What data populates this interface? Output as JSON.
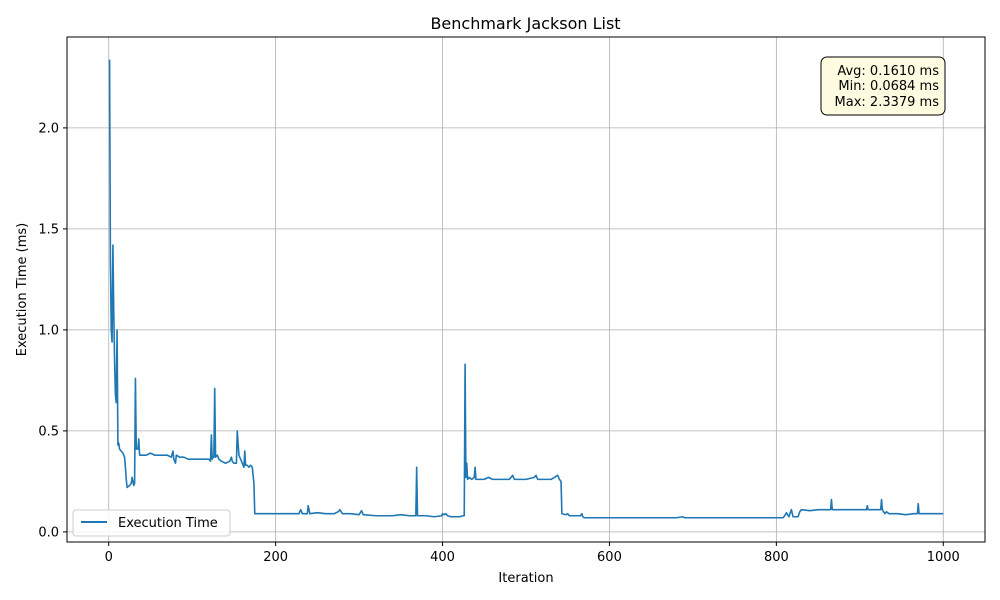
{
  "chart_data": {
    "type": "line",
    "title": "Benchmark Jackson List",
    "xlabel": "Iteration",
    "ylabel": "Execution Time (ms)",
    "xlim": [
      -50,
      1050
    ],
    "ylim": [
      -0.05,
      2.45
    ],
    "xticks": [
      0,
      200,
      400,
      600,
      800,
      1000
    ],
    "yticks": [
      0.0,
      0.5,
      1.0,
      1.5,
      2.0
    ],
    "xtick_labels": [
      "0",
      "200",
      "400",
      "600",
      "800",
      "1000"
    ],
    "ytick_labels": [
      "0.0",
      "0.5",
      "1.0",
      "1.5",
      "2.0"
    ],
    "grid": true,
    "legend_position": "lower-left",
    "series": [
      {
        "name": "Execution Time",
        "color": "#1f77b4",
        "points": [
          [
            1,
            2.3379
          ],
          [
            2,
            1.35
          ],
          [
            3,
            1.0
          ],
          [
            4,
            0.94
          ],
          [
            5,
            1.42
          ],
          [
            6,
            1.1
          ],
          [
            7,
            0.85
          ],
          [
            8,
            0.68
          ],
          [
            9,
            0.64
          ],
          [
            10,
            1.0
          ],
          [
            11,
            0.43
          ],
          [
            12,
            0.44
          ],
          [
            13,
            0.41
          ],
          [
            15,
            0.4
          ],
          [
            17,
            0.39
          ],
          [
            19,
            0.37
          ],
          [
            20,
            0.32
          ],
          [
            21,
            0.26
          ],
          [
            22,
            0.22
          ],
          [
            25,
            0.23
          ],
          [
            27,
            0.24
          ],
          [
            28,
            0.27
          ],
          [
            30,
            0.23
          ],
          [
            31,
            0.24
          ],
          [
            32,
            0.76
          ],
          [
            33,
            0.41
          ],
          [
            35,
            0.41
          ],
          [
            36,
            0.46
          ],
          [
            37,
            0.38
          ],
          [
            40,
            0.38
          ],
          [
            45,
            0.38
          ],
          [
            50,
            0.39
          ],
          [
            55,
            0.38
          ],
          [
            60,
            0.38
          ],
          [
            65,
            0.38
          ],
          [
            70,
            0.38
          ],
          [
            75,
            0.37
          ],
          [
            77,
            0.4
          ],
          [
            78,
            0.36
          ],
          [
            80,
            0.34
          ],
          [
            81,
            0.38
          ],
          [
            85,
            0.37
          ],
          [
            90,
            0.37
          ],
          [
            95,
            0.36
          ],
          [
            100,
            0.36
          ],
          [
            105,
            0.36
          ],
          [
            110,
            0.36
          ],
          [
            115,
            0.36
          ],
          [
            120,
            0.36
          ],
          [
            122,
            0.35
          ],
          [
            123,
            0.48
          ],
          [
            124,
            0.36
          ],
          [
            125,
            0.37
          ],
          [
            126,
            0.37
          ],
          [
            127,
            0.71
          ],
          [
            128,
            0.37
          ],
          [
            130,
            0.38
          ],
          [
            132,
            0.36
          ],
          [
            135,
            0.35
          ],
          [
            140,
            0.34
          ],
          [
            145,
            0.35
          ],
          [
            147,
            0.37
          ],
          [
            148,
            0.35
          ],
          [
            150,
            0.34
          ],
          [
            153,
            0.34
          ],
          [
            154,
            0.5
          ],
          [
            156,
            0.38
          ],
          [
            158,
            0.36
          ],
          [
            160,
            0.34
          ],
          [
            162,
            0.32
          ],
          [
            163,
            0.4
          ],
          [
            164,
            0.33
          ],
          [
            166,
            0.33
          ],
          [
            168,
            0.32
          ],
          [
            170,
            0.33
          ],
          [
            172,
            0.32
          ],
          [
            174,
            0.24
          ],
          [
            175,
            0.09
          ],
          [
            180,
            0.09
          ],
          [
            190,
            0.09
          ],
          [
            200,
            0.09
          ],
          [
            210,
            0.09
          ],
          [
            220,
            0.09
          ],
          [
            228,
            0.09
          ],
          [
            230,
            0.11
          ],
          [
            232,
            0.09
          ],
          [
            238,
            0.09
          ],
          [
            239,
            0.13
          ],
          [
            241,
            0.09
          ],
          [
            250,
            0.095
          ],
          [
            260,
            0.09
          ],
          [
            270,
            0.09
          ],
          [
            275,
            0.1
          ],
          [
            277,
            0.11
          ],
          [
            280,
            0.09
          ],
          [
            290,
            0.09
          ],
          [
            300,
            0.085
          ],
          [
            303,
            0.105
          ],
          [
            305,
            0.085
          ],
          [
            320,
            0.08
          ],
          [
            340,
            0.08
          ],
          [
            350,
            0.085
          ],
          [
            360,
            0.08
          ],
          [
            368,
            0.08
          ],
          [
            369,
            0.32
          ],
          [
            370,
            0.08
          ],
          [
            380,
            0.08
          ],
          [
            390,
            0.075
          ],
          [
            399,
            0.08
          ],
          [
            400,
            0.09
          ],
          [
            402,
            0.085
          ],
          [
            404,
            0.09
          ],
          [
            406,
            0.08
          ],
          [
            410,
            0.075
          ],
          [
            420,
            0.075
          ],
          [
            425,
            0.08
          ],
          [
            426,
            0.08
          ],
          [
            427,
            0.83
          ],
          [
            428,
            0.27
          ],
          [
            429,
            0.34
          ],
          [
            430,
            0.26
          ],
          [
            432,
            0.27
          ],
          [
            435,
            0.26
          ],
          [
            438,
            0.27
          ],
          [
            439,
            0.32
          ],
          [
            440,
            0.26
          ],
          [
            450,
            0.26
          ],
          [
            455,
            0.27
          ],
          [
            460,
            0.26
          ],
          [
            470,
            0.26
          ],
          [
            480,
            0.26
          ],
          [
            484,
            0.28
          ],
          [
            486,
            0.26
          ],
          [
            500,
            0.26
          ],
          [
            510,
            0.27
          ],
          [
            512,
            0.28
          ],
          [
            514,
            0.26
          ],
          [
            520,
            0.26
          ],
          [
            530,
            0.26
          ],
          [
            538,
            0.28
          ],
          [
            540,
            0.26
          ],
          [
            542,
            0.25
          ],
          [
            543,
            0.09
          ],
          [
            548,
            0.085
          ],
          [
            550,
            0.09
          ],
          [
            552,
            0.08
          ],
          [
            560,
            0.08
          ],
          [
            565,
            0.08
          ],
          [
            567,
            0.09
          ],
          [
            568,
            0.075
          ],
          [
            570,
            0.07
          ],
          [
            580,
            0.07
          ],
          [
            590,
            0.07
          ],
          [
            600,
            0.07
          ],
          [
            610,
            0.07
          ],
          [
            620,
            0.07
          ],
          [
            640,
            0.07
          ],
          [
            660,
            0.07
          ],
          [
            680,
            0.07
          ],
          [
            688,
            0.075
          ],
          [
            690,
            0.07
          ],
          [
            700,
            0.07
          ],
          [
            720,
            0.07
          ],
          [
            740,
            0.07
          ],
          [
            760,
            0.07
          ],
          [
            780,
            0.07
          ],
          [
            800,
            0.07
          ],
          [
            808,
            0.07
          ],
          [
            810,
            0.08
          ],
          [
            812,
            0.095
          ],
          [
            815,
            0.075
          ],
          [
            818,
            0.11
          ],
          [
            820,
            0.075
          ],
          [
            826,
            0.075
          ],
          [
            828,
            0.1
          ],
          [
            830,
            0.11
          ],
          [
            840,
            0.105
          ],
          [
            850,
            0.11
          ],
          [
            860,
            0.11
          ],
          [
            865,
            0.11
          ],
          [
            866,
            0.16
          ],
          [
            867,
            0.11
          ],
          [
            880,
            0.11
          ],
          [
            890,
            0.11
          ],
          [
            900,
            0.11
          ],
          [
            908,
            0.11
          ],
          [
            909,
            0.13
          ],
          [
            910,
            0.11
          ],
          [
            920,
            0.11
          ],
          [
            925,
            0.11
          ],
          [
            926,
            0.16
          ],
          [
            927,
            0.11
          ],
          [
            930,
            0.09
          ],
          [
            932,
            0.1
          ],
          [
            935,
            0.09
          ],
          [
            945,
            0.09
          ],
          [
            955,
            0.085
          ],
          [
            965,
            0.09
          ],
          [
            969,
            0.09
          ],
          [
            970,
            0.14
          ],
          [
            971,
            0.09
          ],
          [
            980,
            0.09
          ],
          [
            990,
            0.09
          ],
          [
            1000,
            0.09
          ]
        ]
      }
    ],
    "stats": {
      "avg": "Avg: 0.1610 ms",
      "min": "Min: 0.0684 ms",
      "max": "Max: 2.3379 ms"
    }
  }
}
